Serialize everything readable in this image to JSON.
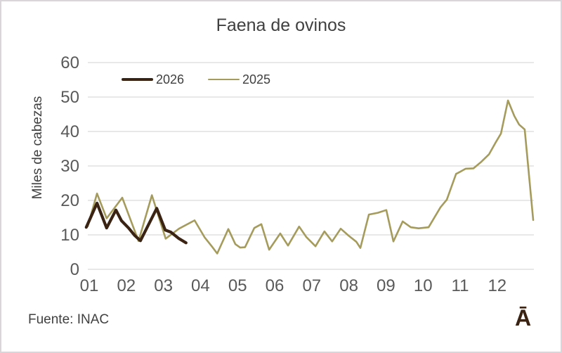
{
  "source": "Fuente: INAC",
  "logo_mark": "Ā",
  "chart_data": {
    "type": "line",
    "title": "Faena de ovinos",
    "xlabel": "",
    "ylabel": "Miles de cabezas",
    "ylim": [
      0,
      60
    ],
    "xlim": [
      0.9,
      13.0
    ],
    "y_ticks": [
      0,
      10,
      20,
      30,
      40,
      50,
      60
    ],
    "x_tick_labels": [
      "01",
      "02",
      "03",
      "04",
      "05",
      "06",
      "07",
      "08",
      "09",
      "10",
      "11",
      "12"
    ],
    "grid": "horizontal",
    "grid_color": "#dbdbdb",
    "axis_text_color": "#595959",
    "legend_position": "top-left-inside",
    "units": "miles de cabezas (thousands of heads), weekly slaughter by month 01-12",
    "series": [
      {
        "name": "2025",
        "color": "#a49b5c",
        "line_width": 2.6,
        "points": [
          [
            0.96,
            12.5
          ],
          [
            1.21,
            22.0
          ],
          [
            1.47,
            14.8
          ],
          [
            1.89,
            20.8
          ],
          [
            2.33,
            8.2
          ],
          [
            2.69,
            21.5
          ],
          [
            3.06,
            8.9
          ],
          [
            3.42,
            11.8
          ],
          [
            3.84,
            14.2
          ],
          [
            4.11,
            9.3
          ],
          [
            4.31,
            6.6
          ],
          [
            4.45,
            4.6
          ],
          [
            4.75,
            11.7
          ],
          [
            4.94,
            7.3
          ],
          [
            5.07,
            6.3
          ],
          [
            5.2,
            6.4
          ],
          [
            5.45,
            12.0
          ],
          [
            5.64,
            13.1
          ],
          [
            5.85,
            5.7
          ],
          [
            6.15,
            10.4
          ],
          [
            6.36,
            6.9
          ],
          [
            6.66,
            12.4
          ],
          [
            6.85,
            9.4
          ],
          [
            7.1,
            6.7
          ],
          [
            7.34,
            11.0
          ],
          [
            7.55,
            8.1
          ],
          [
            7.78,
            11.8
          ],
          [
            7.99,
            9.8
          ],
          [
            8.2,
            8.0
          ],
          [
            8.31,
            6.2
          ],
          [
            8.54,
            15.9
          ],
          [
            8.78,
            16.4
          ],
          [
            9.01,
            17.2
          ],
          [
            9.2,
            8.1
          ],
          [
            9.45,
            13.9
          ],
          [
            9.67,
            12.2
          ],
          [
            9.88,
            11.9
          ],
          [
            10.15,
            12.2
          ],
          [
            10.47,
            18.0
          ],
          [
            10.64,
            20.2
          ],
          [
            10.89,
            27.7
          ],
          [
            11.0,
            28.3
          ],
          [
            11.15,
            29.2
          ],
          [
            11.36,
            29.3
          ],
          [
            11.57,
            31.2
          ],
          [
            11.78,
            33.4
          ],
          [
            11.95,
            36.7
          ],
          [
            12.1,
            39.4
          ],
          [
            12.29,
            49.0
          ],
          [
            12.46,
            44.5
          ],
          [
            12.59,
            42.0
          ],
          [
            12.74,
            40.6
          ],
          [
            12.97,
            14.3
          ]
        ]
      },
      {
        "name": "2026",
        "color": "#3b2314",
        "line_width": 4.2,
        "points": [
          [
            0.92,
            12.2
          ],
          [
            1.21,
            19.2
          ],
          [
            1.47,
            12.0
          ],
          [
            1.72,
            17.2
          ],
          [
            1.87,
            14.1
          ],
          [
            2.06,
            12.0
          ],
          [
            2.23,
            9.8
          ],
          [
            2.38,
            8.3
          ],
          [
            2.82,
            17.7
          ],
          [
            3.05,
            11.4
          ],
          [
            3.2,
            10.8
          ],
          [
            3.41,
            9.0
          ],
          [
            3.61,
            7.7
          ]
        ]
      }
    ],
    "legend_order": [
      "2026",
      "2025"
    ]
  }
}
